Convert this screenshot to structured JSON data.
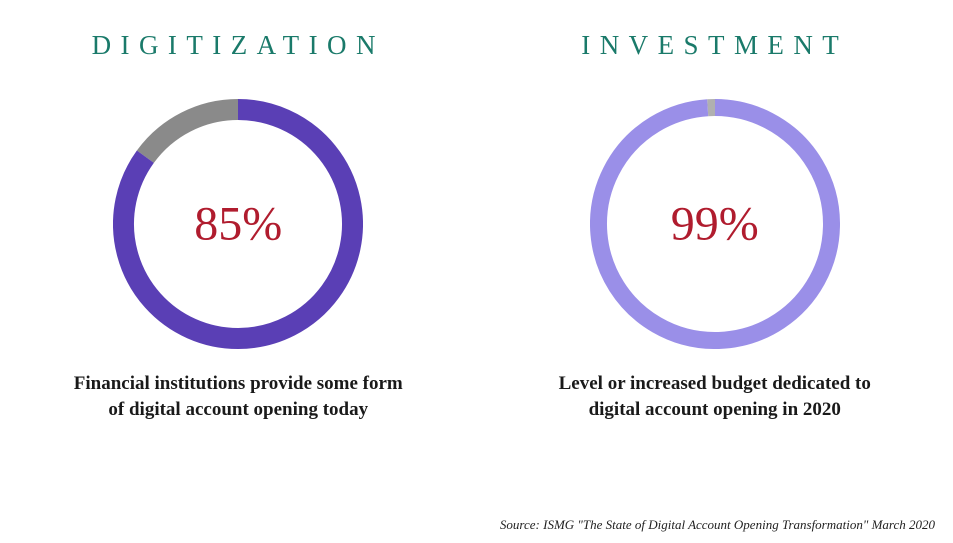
{
  "background_color": "#ffffff",
  "panels": [
    {
      "id": "digitization",
      "heading": "DIGITIZATION",
      "heading_color": "#1a7a6a",
      "heading_fontsize": 27,
      "donut": {
        "type": "donut",
        "value_pct": 85,
        "value_label": "85%",
        "value_color": "#b01c2e",
        "value_fontsize": 48,
        "diameter": 250,
        "ring_thickness": 21,
        "fill_color": "#5a3fb5",
        "remainder_color": "#8a8a8a",
        "start_angle_deg": 0,
        "direction": "clockwise"
      },
      "caption": "Financial institutions provide some form of digital account opening today",
      "caption_color": "#1a1a1a",
      "caption_fontsize": 19
    },
    {
      "id": "investment",
      "heading": "INVESTMENT",
      "heading_color": "#1a7a6a",
      "heading_fontsize": 27,
      "donut": {
        "type": "donut",
        "value_pct": 99,
        "value_label": "99%",
        "value_color": "#b01c2e",
        "value_fontsize": 48,
        "diameter": 250,
        "ring_thickness": 17,
        "fill_color": "#9a8fe8",
        "remainder_color": "#b0b0b0",
        "start_angle_deg": 0,
        "direction": "clockwise"
      },
      "caption": "Level or increased budget dedicated to digital account opening in 2020",
      "caption_color": "#1a1a1a",
      "caption_fontsize": 19
    }
  ],
  "source": {
    "text": "Source: ISMG \"The State of Digital Account Opening Transformation\" March 2020",
    "color": "#222222",
    "fontsize": 13
  }
}
